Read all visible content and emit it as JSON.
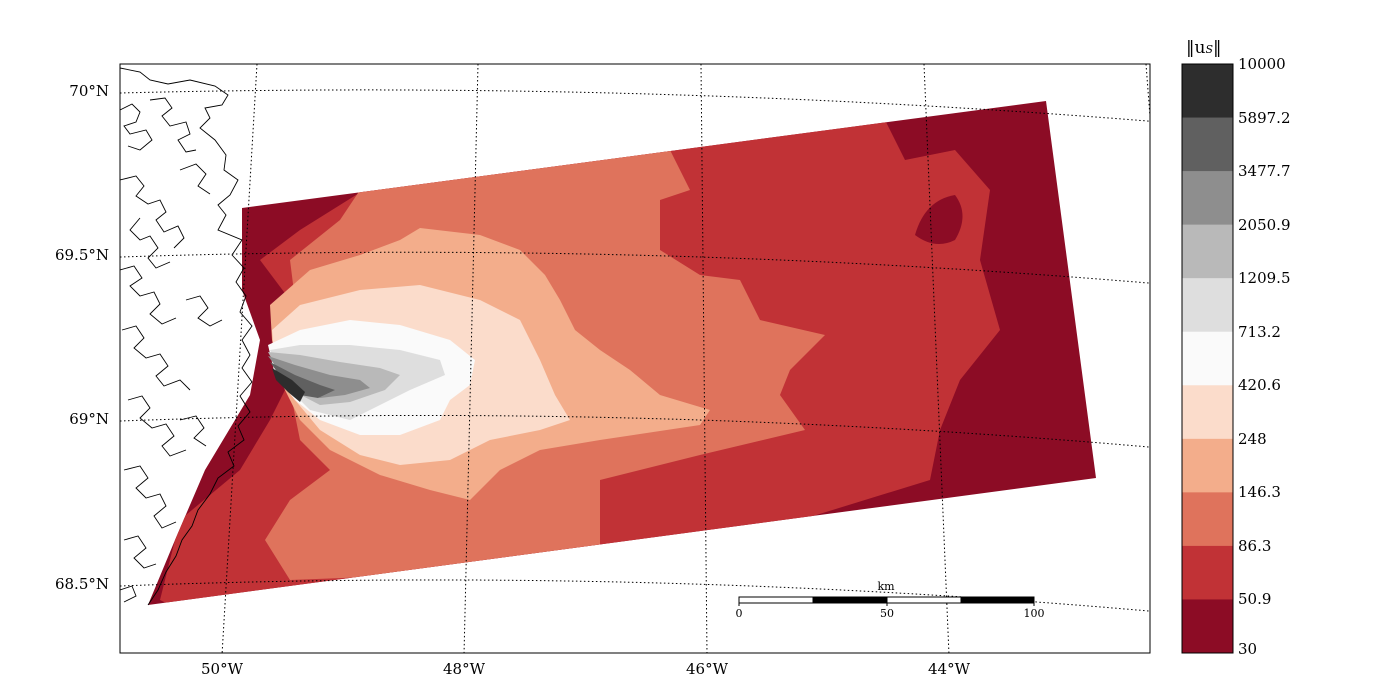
{
  "map": {
    "lat_labels": [
      "70°N",
      "69.5°N",
      "69°N",
      "68.5°N"
    ],
    "lon_labels": [
      "50°W",
      "48°W",
      "46°W",
      "44°W"
    ],
    "scalebar": {
      "unit": "km",
      "ticks": [
        "0",
        "50",
        "100"
      ]
    }
  },
  "colorbar": {
    "title": "‖u",
    "title_sub": "S",
    "title_end": "‖",
    "levels": [
      "10000",
      "5897.2",
      "3477.7",
      "2050.9",
      "1209.5",
      "713.2",
      "420.6",
      "248",
      "146.3",
      "86.3",
      "50.9",
      "30"
    ],
    "colors": [
      "#2d2d2d",
      "#606060",
      "#8e8e8e",
      "#b9b9b9",
      "#dedede",
      "#fafafa",
      "#fbdccb",
      "#f3ad8b",
      "#df735c",
      "#c13236",
      "#8c0c25"
    ]
  },
  "field_colors": {
    "c30": "#8c0c25",
    "c51": "#c13236",
    "c86": "#df735c",
    "c146": "#f3ad8b",
    "c248": "#fbdccb",
    "c421": "#fafafa",
    "c713": "#dedede",
    "c1210": "#b9b9b9",
    "c2051": "#8e8e8e",
    "c3478": "#606060",
    "c5897": "#2d2d2d"
  }
}
